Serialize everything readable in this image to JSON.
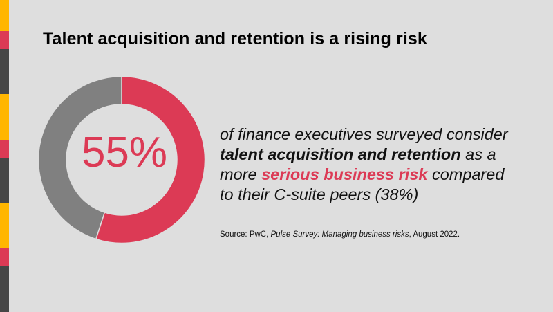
{
  "title": "Talent acquisition and retention is a rising risk",
  "colors": {
    "accent_red": "#dc3a55",
    "gray": "#808080",
    "background": "#dedede",
    "stripe_yellow": "#ffb600",
    "stripe_dark": "#464646"
  },
  "chart_data": {
    "type": "pie",
    "variant": "donut",
    "values": [
      55,
      45
    ],
    "colors": [
      "#dc3a55",
      "#808080"
    ],
    "center_label": "55%",
    "start": "top",
    "direction": "clockwise"
  },
  "statement": {
    "line1": "of finance executives surveyed consider",
    "line2_bold": "talent acquisition and retention",
    "line2_rest": " as a",
    "line3_start": "more ",
    "line3_highlight": "serious business risk",
    "line3_rest": " compared",
    "line4": "to their C-suite peers (38%)"
  },
  "source": {
    "prefix": "Source: PwC, ",
    "title": "Pulse Survey: Managing business risks",
    "suffix": ", August 2022."
  }
}
